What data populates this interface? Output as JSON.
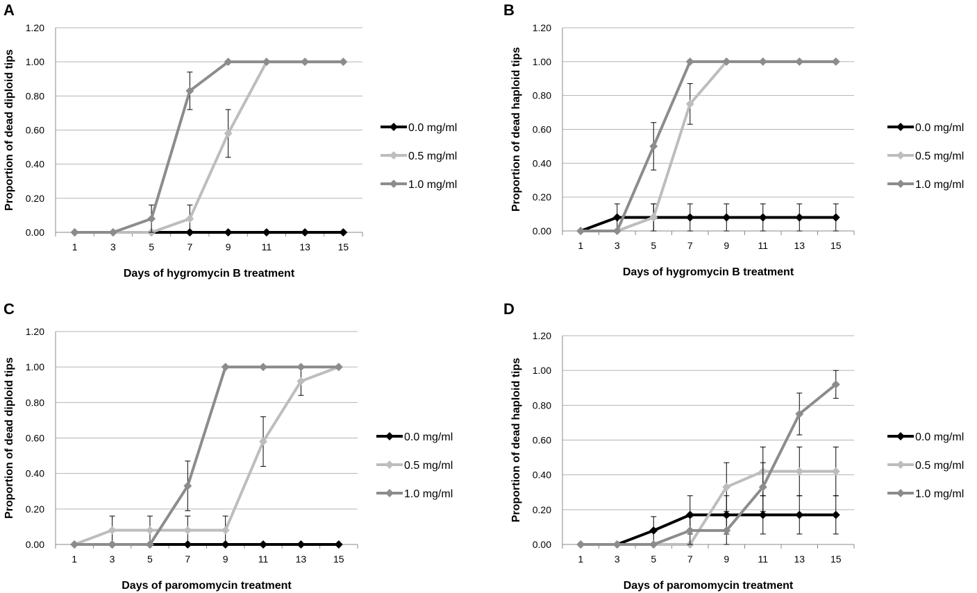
{
  "chart_data": [
    {
      "panel": "A",
      "type": "line",
      "title": "",
      "xlabel": "Days of hygromycin B treatment",
      "ylabel": "Proportion of dead diploid tips",
      "x": [
        1,
        3,
        5,
        7,
        9,
        11,
        13,
        15
      ],
      "xticks": [
        "1",
        "3",
        "5",
        "7",
        "9",
        "11",
        "13",
        "15"
      ],
      "yticks": [
        "0.00",
        "0.20",
        "0.40",
        "0.60",
        "0.80",
        "1.00",
        "1.20"
      ],
      "ylim": [
        0,
        1.2
      ],
      "grid": true,
      "legend_position": "right",
      "series": [
        {
          "name": "0.0 mg/ml",
          "color": "#000000",
          "values": [
            0,
            0,
            0,
            0,
            0,
            0,
            0,
            0
          ],
          "errors": [
            0,
            0,
            0,
            0,
            0,
            0,
            0,
            0
          ]
        },
        {
          "name": "0.5 mg/ml",
          "color": "#bdbdbd",
          "values": [
            0,
            0,
            0,
            0.08,
            0.58,
            1.0,
            1.0,
            1.0
          ],
          "errors": [
            0,
            0,
            0,
            0.08,
            0.14,
            0,
            0,
            0
          ]
        },
        {
          "name": "1.0 mg/ml",
          "color": "#8c8c8c",
          "values": [
            0,
            0,
            0.08,
            0.83,
            1.0,
            1.0,
            1.0,
            1.0
          ],
          "errors": [
            0,
            0,
            0.08,
            0.11,
            0,
            0,
            0,
            0
          ]
        }
      ]
    },
    {
      "panel": "B",
      "type": "line",
      "title": "",
      "xlabel": "Days of hygromycin B treatment",
      "ylabel": "Proportion of dead haploid tips",
      "x": [
        1,
        3,
        5,
        7,
        9,
        11,
        13,
        15
      ],
      "xticks": [
        "1",
        "3",
        "5",
        "7",
        "9",
        "11",
        "13",
        "15"
      ],
      "yticks": [
        "0.00",
        "0.20",
        "0.40",
        "0.60",
        "0.80",
        "1.00",
        "1.20"
      ],
      "ylim": [
        0,
        1.2
      ],
      "grid": true,
      "legend_position": "right",
      "series": [
        {
          "name": "0.0 mg/ml",
          "color": "#000000",
          "values": [
            0,
            0.08,
            0.08,
            0.08,
            0.08,
            0.08,
            0.08,
            0.08
          ],
          "errors": [
            0,
            0.08,
            0.08,
            0.08,
            0.08,
            0.08,
            0.08,
            0.08
          ]
        },
        {
          "name": "0.5 mg/ml",
          "color": "#bdbdbd",
          "values": [
            0,
            0,
            0.08,
            0.75,
            1.0,
            1.0,
            1.0,
            1.0
          ],
          "errors": [
            0,
            0,
            0.08,
            0.12,
            0,
            0,
            0,
            0
          ]
        },
        {
          "name": "1.0 mg/ml",
          "color": "#8c8c8c",
          "values": [
            0,
            0,
            0.5,
            1.0,
            1.0,
            1.0,
            1.0,
            1.0
          ],
          "errors": [
            0,
            0,
            0.14,
            0,
            0,
            0,
            0,
            0
          ]
        }
      ]
    },
    {
      "panel": "C",
      "type": "line",
      "title": "",
      "xlabel": "Days of paromomycin treatment",
      "ylabel": "Proportion of dead diploid tips",
      "x": [
        1,
        3,
        5,
        7,
        9,
        11,
        13,
        15
      ],
      "xticks": [
        "1",
        "3",
        "5",
        "7",
        "9",
        "11",
        "13",
        "15"
      ],
      "yticks": [
        "0.00",
        "0.20",
        "0.40",
        "0.60",
        "0.80",
        "1.00",
        "1.20"
      ],
      "ylim": [
        0,
        1.2
      ],
      "grid": true,
      "legend_position": "right",
      "series": [
        {
          "name": "0.0 mg/ml",
          "color": "#000000",
          "values": [
            0,
            0,
            0,
            0,
            0,
            0,
            0,
            0
          ],
          "errors": [
            0,
            0,
            0,
            0,
            0,
            0,
            0,
            0
          ]
        },
        {
          "name": "0.5 mg/ml",
          "color": "#bdbdbd",
          "values": [
            0,
            0.08,
            0.08,
            0.08,
            0.08,
            0.58,
            0.92,
            1.0
          ],
          "errors": [
            0,
            0.08,
            0.08,
            0.08,
            0.08,
            0.14,
            0.08,
            0
          ]
        },
        {
          "name": "1.0 mg/ml",
          "color": "#8c8c8c",
          "values": [
            0,
            0,
            0,
            0.33,
            1.0,
            1.0,
            1.0,
            1.0
          ],
          "errors": [
            0,
            0,
            0,
            0.14,
            0,
            0,
            0,
            0
          ]
        }
      ]
    },
    {
      "panel": "D",
      "type": "line",
      "title": "",
      "xlabel": "Days of paromomycin treatment",
      "ylabel": "Proportion of dead haploid tips",
      "x": [
        1,
        3,
        5,
        7,
        9,
        11,
        13,
        15
      ],
      "xticks": [
        "1",
        "3",
        "5",
        "7",
        "9",
        "11",
        "13",
        "15"
      ],
      "yticks": [
        "0.00",
        "0.20",
        "0.40",
        "0.60",
        "0.80",
        "1.00",
        "1.20"
      ],
      "ylim": [
        0,
        1.2
      ],
      "grid": true,
      "legend_position": "right",
      "series": [
        {
          "name": "0.0 mg/ml",
          "color": "#000000",
          "values": [
            0,
            0,
            0.08,
            0.17,
            0.17,
            0.17,
            0.17,
            0.17
          ],
          "errors": [
            0,
            0,
            0.08,
            0.11,
            0.11,
            0.11,
            0.11,
            0.11
          ]
        },
        {
          "name": "0.5 mg/ml",
          "color": "#bdbdbd",
          "values": [
            0,
            0,
            0,
            0,
            0.33,
            0.42,
            0.42,
            0.42
          ],
          "errors": [
            0,
            0,
            0,
            0,
            0.14,
            0.14,
            0.14,
            0.14
          ]
        },
        {
          "name": "1.0 mg/ml",
          "color": "#8c8c8c",
          "values": [
            0,
            0,
            0,
            0.08,
            0.08,
            0.33,
            0.75,
            0.92
          ],
          "errors": [
            0,
            0,
            0,
            0.08,
            0.08,
            0.14,
            0.12,
            0.08
          ]
        }
      ]
    }
  ]
}
